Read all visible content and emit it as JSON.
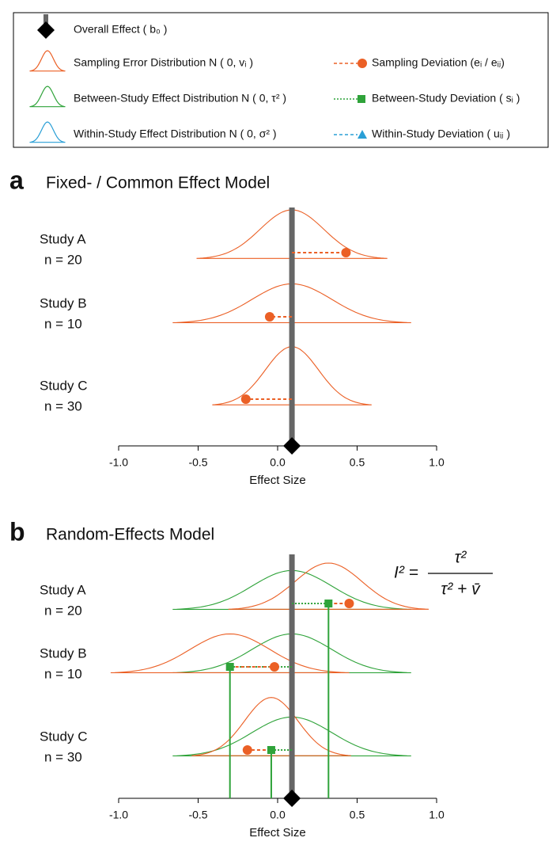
{
  "legend": {
    "entries": [
      {
        "label": "Overall Effect ( b₀ )",
        "color": "#000000",
        "marker": "diamond"
      },
      {
        "label": "Sampling Error Distribution N ( 0, vᵢ )",
        "color": "#eb6026",
        "marker": "curve"
      },
      {
        "label": "Between-Study Effect Distribution N ( 0, τ² )",
        "color": "#2fa33a",
        "marker": "curve"
      },
      {
        "label": "Within-Study Effect Distribution N ( 0, σ² )",
        "color": "#2a9fd6",
        "marker": "curve"
      },
      {
        "label": "Sampling Deviation (eᵢ / eᵢⱼ)",
        "color": "#eb6026",
        "marker": "circle"
      },
      {
        "label": "Between-Study Deviation ( sᵢ )",
        "color": "#2fa33a",
        "marker": "square"
      },
      {
        "label": "Within-Study Deviation ( uᵢⱼ )",
        "color": "#2a9fd6",
        "marker": "triangle"
      }
    ]
  },
  "chart_data": [
    {
      "type": "fixed",
      "panel_label": "a",
      "title": "Fixed- / Common Effect Model",
      "x_label": "Effect Size",
      "xlim": [
        -1.0,
        1.0
      ],
      "xticks": [
        {
          "value": -1.0,
          "label": "-1.0"
        },
        {
          "value": -0.5,
          "label": "-0.5"
        },
        {
          "value": 0,
          "label": "0.0"
        },
        {
          "value": 0.5,
          "label": "0.5"
        },
        {
          "value": 1.0,
          "label": "1.0"
        }
      ],
      "overall_effect": 0.09,
      "sampling_color": "#eb6026",
      "overall_color": "#666666",
      "studies": [
        {
          "name": "Study A",
          "n_label": "n = 20",
          "sd": 0.2,
          "observed": 0.43
        },
        {
          "name": "Study B",
          "n_label": "n = 10",
          "sd": 0.25,
          "observed": -0.05
        },
        {
          "name": "Study C",
          "n_label": "n = 30",
          "sd": 0.167,
          "observed": -0.2
        }
      ]
    },
    {
      "type": "random",
      "panel_label": "b",
      "title": "Random-Effects Model",
      "x_label": "Effect Size",
      "xlim": [
        -1.0,
        1.0
      ],
      "xticks": [
        {
          "value": -1.0,
          "label": "-1.0"
        },
        {
          "value": -0.5,
          "label": "-0.5"
        },
        {
          "value": 0,
          "label": "0.0"
        },
        {
          "value": 0.5,
          "label": "0.5"
        },
        {
          "value": 1.0,
          "label": "1.0"
        }
      ],
      "overall_effect": 0.09,
      "tau": 0.25,
      "sampling_color": "#eb6026",
      "between_color": "#2fa33a",
      "overall_color": "#666666",
      "formula": {
        "lhs": "I² =",
        "numerator": "τ²",
        "denominator": "τ² + v̄"
      },
      "studies": [
        {
          "name": "Study A",
          "n_label": "n = 20",
          "sd": 0.21,
          "true_effect": 0.32,
          "observed": 0.45
        },
        {
          "name": "Study B",
          "n_label": "n = 10",
          "sd": 0.25,
          "true_effect": -0.3,
          "observed": -0.02
        },
        {
          "name": "Study C",
          "n_label": "n = 30",
          "sd": 0.167,
          "true_effect": -0.04,
          "observed": -0.19
        }
      ]
    }
  ]
}
